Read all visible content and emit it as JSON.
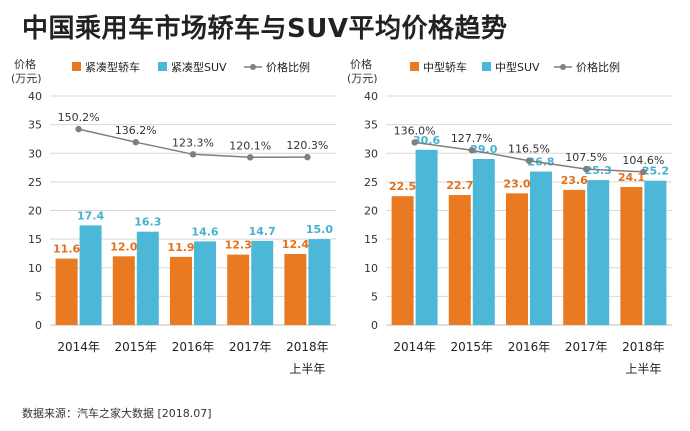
{
  "title": "中国乘用车市场轿车与SUV平均价格趋势",
  "source": "数据来源：汽车之家大数据 [2018.07]",
  "colors": {
    "bar1": "#E97A22",
    "bar2": "#4DB7D8",
    "line": "#7F7F7F",
    "grid": "#D9D9D9"
  },
  "chart_data": [
    {
      "type": "bar",
      "ylabel": [
        "价格",
        "(万元)"
      ],
      "ylim": [
        0,
        40
      ],
      "yticks": [
        0,
        5,
        10,
        15,
        20,
        25,
        30,
        35,
        40
      ],
      "categories": [
        "2014年",
        "2015年",
        "2016年",
        "2017年",
        "2018年"
      ],
      "category_sublabels": [
        "",
        "",
        "",
        "",
        "上半年"
      ],
      "series": [
        {
          "name": "紧凑型轿车",
          "values": [
            11.6,
            12.0,
            11.9,
            12.3,
            12.4
          ]
        },
        {
          "name": "紧凑型SUV",
          "values": [
            17.4,
            16.3,
            14.6,
            14.7,
            15.0
          ]
        }
      ],
      "line": {
        "name": "价格比例",
        "values": [
          150.2,
          136.2,
          123.3,
          120.1,
          120.3
        ],
        "labels": [
          "150.2%",
          "136.2%",
          "123.3%",
          "120.1%",
          "120.3%"
        ],
        "unit": "%"
      },
      "legend": "top"
    },
    {
      "type": "bar",
      "ylabel": [
        "价格",
        "(万元)"
      ],
      "ylim": [
        0,
        40
      ],
      "yticks": [
        0,
        5,
        10,
        15,
        20,
        25,
        30,
        35,
        40
      ],
      "categories": [
        "2014年",
        "2015年",
        "2016年",
        "2017年",
        "2018年"
      ],
      "category_sublabels": [
        "",
        "",
        "",
        "",
        "上半年"
      ],
      "series": [
        {
          "name": "中型轿车",
          "values": [
            22.5,
            22.7,
            23.0,
            23.6,
            24.1
          ]
        },
        {
          "name": "中型SUV",
          "values": [
            30.6,
            29.0,
            26.8,
            25.3,
            25.2
          ]
        }
      ],
      "line": {
        "name": "价格比例",
        "values": [
          136.0,
          127.7,
          116.5,
          107.5,
          104.6
        ],
        "labels": [
          "136.0%",
          "127.7%",
          "116.5%",
          "107.5%",
          "104.6%"
        ],
        "unit": "%"
      },
      "legend": "top"
    }
  ]
}
